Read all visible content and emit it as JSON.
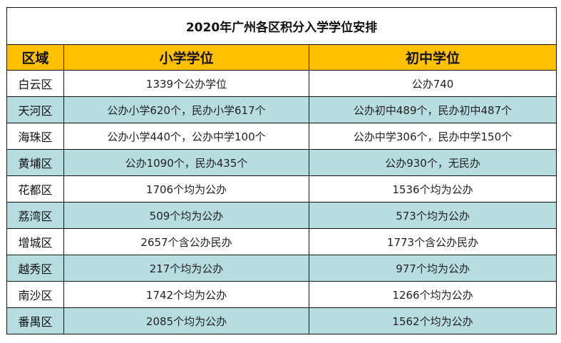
{
  "title": "2020年广州各区积分入学学位安排",
  "headers": [
    "区域",
    "小学学位",
    "初中学位"
  ],
  "colors": {
    "header_bg": "#ffc000",
    "alt_row_bg": "#b8dde1",
    "row_bg": "#ffffff"
  },
  "rows": [
    {
      "district": "白云区",
      "primary": "1339个公办学位",
      "junior": "公办740"
    },
    {
      "district": "天河区",
      "primary": "公办小学620个，民办小学617个",
      "junior": "公办初中489个，民办初中487个"
    },
    {
      "district": "海珠区",
      "primary": "公办小学440个，公办中学100个",
      "junior": "公办中学306个，民办中学150个"
    },
    {
      "district": "黄埔区",
      "primary": "公办1090个，民办435个",
      "junior": "公办930个，无民办"
    },
    {
      "district": "花都区",
      "primary": "1706个均为公办",
      "junior": "1536个均为公办"
    },
    {
      "district": "荔湾区",
      "primary": "509个均为公办",
      "junior": "573个均为公办"
    },
    {
      "district": "增城区",
      "primary": "2657个含公办民办",
      "junior": "1773个含公办民办"
    },
    {
      "district": "越秀区",
      "primary": "217个均为公办",
      "junior": "977个均为公办"
    },
    {
      "district": "南沙区",
      "primary": "1742个均为公办",
      "junior": "1266个均为公办"
    },
    {
      "district": "番禺区",
      "primary": "2085个均为公办",
      "junior": "1562个均为公办"
    }
  ]
}
